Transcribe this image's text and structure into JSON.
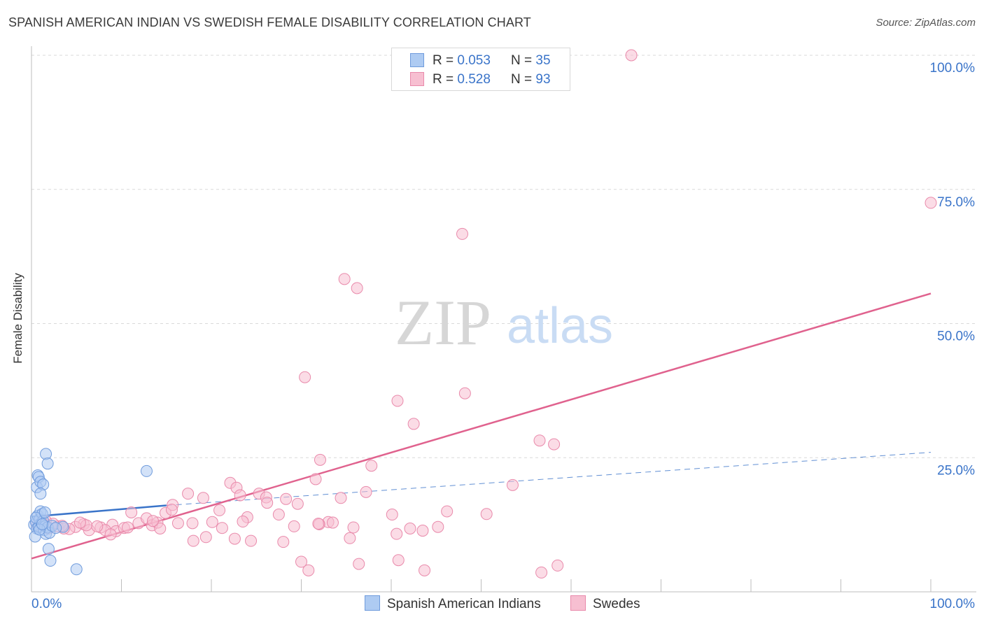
{
  "title": "SPANISH AMERICAN INDIAN VS SWEDISH FEMALE DISABILITY CORRELATION CHART",
  "source": "Source: ZipAtlas.com",
  "colors": {
    "blue_fill": "#aecbf2",
    "blue_stroke": "#6f9bdc",
    "blue_line": "#3a74c9",
    "pink_fill": "#f7bfd1",
    "pink_stroke": "#e98aab",
    "pink_line": "#e0628e",
    "axis_text": "#3a74c9",
    "grid": "#d9d9d9"
  },
  "watermark": {
    "zip": "ZIP",
    "atlas": "atlas"
  },
  "legend_top": {
    "rows": [
      {
        "series": "Spanish American Indians",
        "r_label": "R = ",
        "r_value": "0.053",
        "n_label": "N = ",
        "n_value": "35"
      },
      {
        "series": "Swedes",
        "r_label": "R = ",
        "r_value": "0.528",
        "n_label": "N = ",
        "n_value": "93"
      }
    ]
  },
  "legend_bottom": {
    "items": [
      "Spanish American Indians",
      "Swedes"
    ]
  },
  "chart_data": {
    "type": "scatter",
    "title": "SPANISH AMERICAN INDIAN VS SWEDISH FEMALE DISABILITY CORRELATION CHART",
    "xlabel": "",
    "ylabel": "Female Disability",
    "xlim": [
      0,
      100
    ],
    "ylim": [
      0,
      100
    ],
    "x_tick_labels": [
      "0.0%",
      "100.0%"
    ],
    "y_ticks": [
      25,
      50,
      75,
      100
    ],
    "y_tick_labels": [
      "25.0%",
      "50.0%",
      "75.0%",
      "100.0%"
    ],
    "grid": true,
    "series": [
      {
        "name": "Spanish American Indians",
        "color": "#6f9bdc",
        "R": 0.053,
        "N": 35,
        "trend": {
          "x0": 0,
          "y0": 14.0,
          "x1": 15,
          "y1": 16.1,
          "dashed_to_x": 100,
          "dashed_to_y": 26.0
        },
        "points": [
          [
            0.3,
            12.5
          ],
          [
            0.5,
            13.0
          ],
          [
            0.6,
            11.8
          ],
          [
            0.7,
            14.2
          ],
          [
            0.8,
            12.0
          ],
          [
            0.9,
            13.5
          ],
          [
            1.0,
            15.0
          ],
          [
            1.1,
            12.8
          ],
          [
            1.2,
            14.5
          ],
          [
            1.3,
            13.2
          ],
          [
            1.4,
            11.5
          ],
          [
            1.5,
            12.2
          ],
          [
            1.6,
            10.8
          ],
          [
            1.8,
            12.0
          ],
          [
            2.0,
            11.0
          ],
          [
            2.3,
            12.3
          ],
          [
            0.4,
            10.3
          ],
          [
            0.6,
            19.5
          ],
          [
            0.7,
            21.7
          ],
          [
            0.8,
            21.4
          ],
          [
            1.0,
            20.5
          ],
          [
            1.3,
            20.0
          ],
          [
            1.6,
            25.7
          ],
          [
            1.8,
            23.9
          ],
          [
            1.0,
            18.3
          ],
          [
            12.8,
            22.5
          ],
          [
            1.9,
            8.0
          ],
          [
            2.1,
            5.8
          ],
          [
            5.0,
            4.2
          ],
          [
            0.5,
            13.8
          ],
          [
            0.9,
            11.6
          ],
          [
            3.5,
            12.1
          ],
          [
            1.2,
            12.6
          ],
          [
            2.7,
            11.9
          ],
          [
            1.5,
            14.8
          ]
        ]
      },
      {
        "name": "Swedes",
        "color": "#e98aab",
        "R": 0.528,
        "N": 93,
        "trend": {
          "x0": 0,
          "y0": 6.2,
          "x1": 100,
          "y1": 55.6
        },
        "points": [
          [
            66.7,
            100.0
          ],
          [
            100.0,
            72.5
          ],
          [
            47.9,
            66.7
          ],
          [
            34.8,
            58.3
          ],
          [
            36.2,
            56.6
          ],
          [
            30.4,
            40.0
          ],
          [
            48.2,
            37.0
          ],
          [
            40.7,
            35.6
          ],
          [
            42.5,
            31.3
          ],
          [
            56.5,
            28.2
          ],
          [
            58.1,
            27.5
          ],
          [
            32.1,
            24.6
          ],
          [
            37.8,
            23.5
          ],
          [
            31.6,
            21.0
          ],
          [
            22.1,
            20.3
          ],
          [
            22.8,
            19.4
          ],
          [
            53.5,
            19.9
          ],
          [
            37.2,
            18.6
          ],
          [
            17.4,
            18.3
          ],
          [
            19.1,
            17.5
          ],
          [
            25.3,
            18.3
          ],
          [
            23.2,
            18.0
          ],
          [
            26.1,
            17.6
          ],
          [
            28.3,
            17.3
          ],
          [
            34.4,
            17.5
          ],
          [
            29.6,
            16.4
          ],
          [
            26.2,
            16.6
          ],
          [
            15.7,
            16.2
          ],
          [
            14.9,
            14.7
          ],
          [
            11.1,
            14.8
          ],
          [
            40.1,
            14.4
          ],
          [
            46.2,
            15.0
          ],
          [
            50.6,
            14.5
          ],
          [
            27.5,
            14.4
          ],
          [
            24.0,
            13.9
          ],
          [
            20.1,
            13.0
          ],
          [
            23.5,
            13.1
          ],
          [
            33.0,
            13.0
          ],
          [
            33.5,
            12.9
          ],
          [
            32.0,
            12.6
          ],
          [
            35.8,
            12.0
          ],
          [
            42.1,
            11.8
          ],
          [
            45.2,
            12.1
          ],
          [
            21.2,
            11.9
          ],
          [
            11.9,
            12.8
          ],
          [
            12.8,
            13.7
          ],
          [
            13.4,
            12.4
          ],
          [
            14.0,
            12.9
          ],
          [
            16.3,
            12.8
          ],
          [
            9.0,
            12.5
          ],
          [
            7.7,
            12.0
          ],
          [
            5.8,
            12.6
          ],
          [
            4.9,
            12.1
          ],
          [
            4.2,
            11.7
          ],
          [
            2.9,
            12.2
          ],
          [
            3.6,
            11.8
          ],
          [
            1.6,
            13.2
          ],
          [
            1.9,
            11.8
          ],
          [
            1.2,
            12.9
          ],
          [
            0.6,
            12.5
          ],
          [
            8.2,
            11.5
          ],
          [
            9.4,
            11.3
          ],
          [
            10.3,
            11.9
          ],
          [
            6.4,
            11.5
          ],
          [
            7.3,
            12.2
          ],
          [
            10.7,
            12.0
          ],
          [
            17.9,
            12.8
          ],
          [
            19.4,
            10.2
          ],
          [
            22.6,
            9.9
          ],
          [
            24.4,
            9.5
          ],
          [
            18.0,
            9.5
          ],
          [
            35.4,
            10.0
          ],
          [
            40.6,
            10.8
          ],
          [
            43.5,
            11.4
          ],
          [
            28.0,
            9.3
          ],
          [
            14.3,
            11.8
          ],
          [
            8.8,
            10.7
          ],
          [
            13.5,
            13.2
          ],
          [
            6.1,
            12.4
          ],
          [
            15.6,
            15.3
          ],
          [
            5.4,
            12.9
          ],
          [
            29.2,
            12.2
          ],
          [
            3.4,
            12.3
          ],
          [
            2.4,
            12.7
          ],
          [
            30.0,
            5.6
          ],
          [
            30.8,
            4.0
          ],
          [
            36.4,
            5.2
          ],
          [
            40.8,
            5.9
          ],
          [
            43.7,
            4.0
          ],
          [
            56.7,
            3.6
          ],
          [
            58.5,
            4.9
          ],
          [
            31.9,
            12.7
          ],
          [
            20.9,
            15.2
          ]
        ]
      }
    ]
  }
}
